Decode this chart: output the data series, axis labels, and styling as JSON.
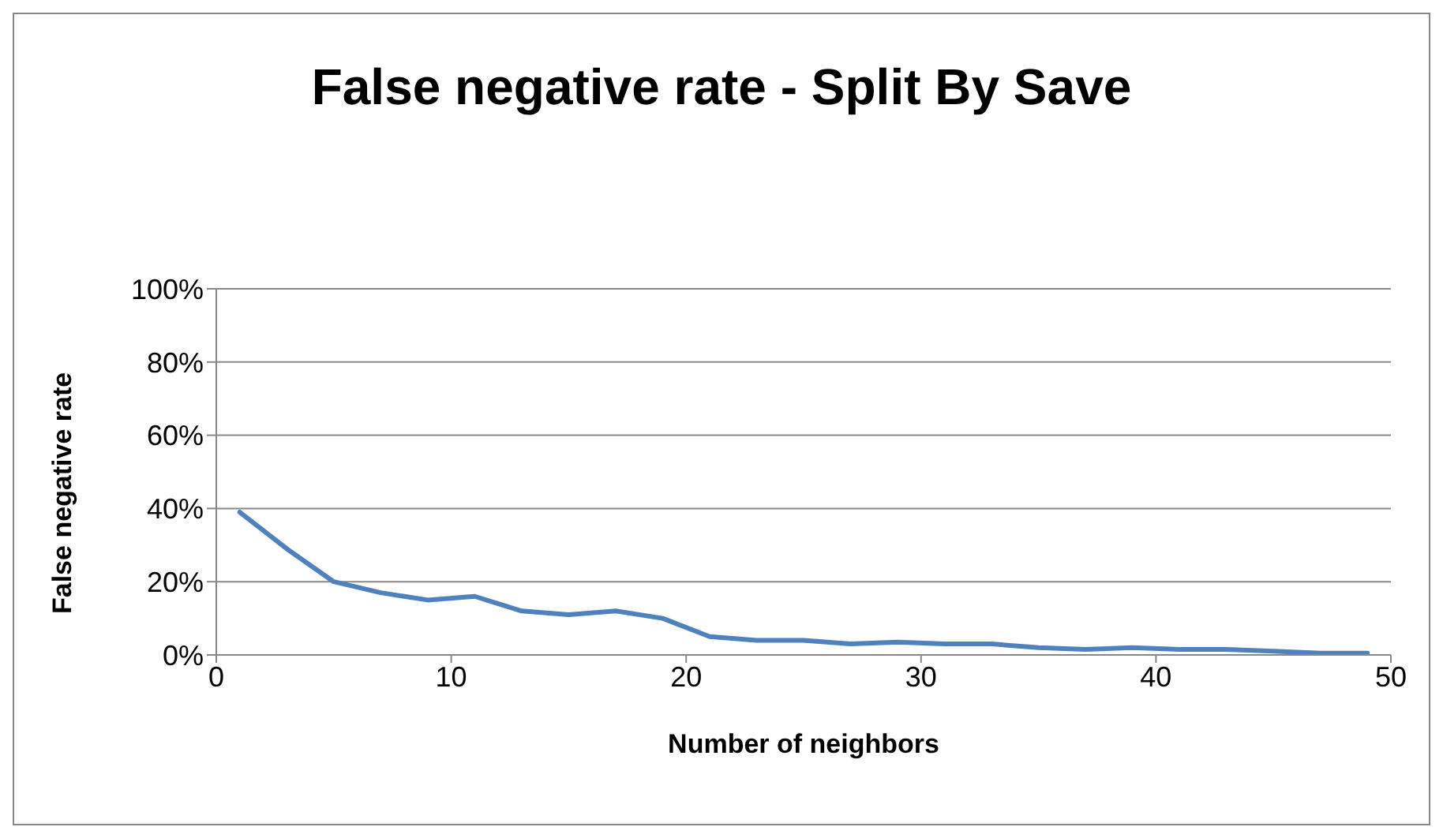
{
  "chart_data": {
    "type": "line",
    "title": "False negative rate - Split By Save",
    "xlabel": "Number of neighbors",
    "ylabel": "False negative rate",
    "x": [
      1,
      3,
      5,
      7,
      9,
      11,
      13,
      15,
      17,
      19,
      21,
      23,
      25,
      27,
      29,
      31,
      33,
      35,
      37,
      39,
      41,
      43,
      45,
      47,
      49
    ],
    "series": [
      {
        "color": "#4f81bd",
        "values": [
          39,
          29,
          20,
          17,
          15,
          16,
          12,
          11,
          12,
          10,
          5,
          4,
          4,
          3,
          3.5,
          3,
          3,
          2,
          1.5,
          2,
          1.5,
          1.5,
          1,
          0.5,
          0.5
        ]
      }
    ],
    "xlim": [
      0,
      50
    ],
    "xticks": [
      0,
      10,
      20,
      30,
      40,
      50
    ],
    "ylim": [
      0,
      100
    ],
    "yticks": [
      {
        "value": 0,
        "label": "0%"
      },
      {
        "value": 20,
        "label": "20%"
      },
      {
        "value": 40,
        "label": "40%"
      },
      {
        "value": 60,
        "label": "60%"
      },
      {
        "value": 80,
        "label": "80%"
      },
      {
        "value": 100,
        "label": "100%"
      }
    ],
    "grid": "y",
    "legend": false,
    "marker": "none",
    "line_style": "solid"
  }
}
